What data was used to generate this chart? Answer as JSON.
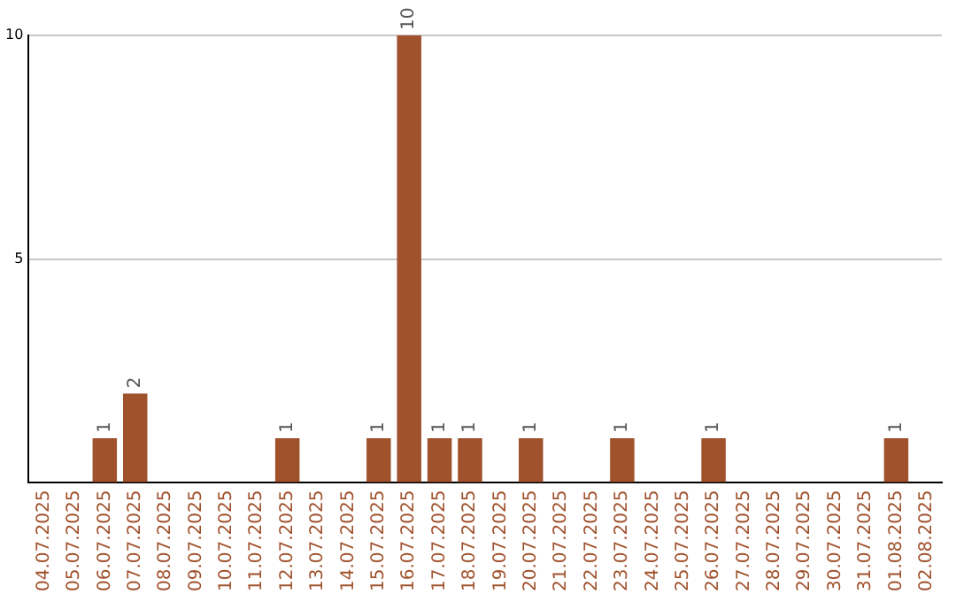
{
  "chart_data": {
    "type": "bar",
    "categories": [
      "04.07.2025",
      "05.07.2025",
      "06.07.2025",
      "07.07.2025",
      "08.07.2025",
      "09.07.2025",
      "10.07.2025",
      "11.07.2025",
      "12.07.2025",
      "13.07.2025",
      "14.07.2025",
      "15.07.2025",
      "16.07.2025",
      "17.07.2025",
      "18.07.2025",
      "19.07.2025",
      "20.07.2025",
      "21.07.2025",
      "22.07.2025",
      "23.07.2025",
      "24.07.2025",
      "25.07.2025",
      "26.07.2025",
      "27.07.2025",
      "28.07.2025",
      "29.07.2025",
      "30.07.2025",
      "31.07.2025",
      "01.08.2025",
      "02.08.2025"
    ],
    "values": [
      0,
      0,
      1,
      2,
      0,
      0,
      0,
      0,
      1,
      0,
      0,
      1,
      10,
      1,
      1,
      0,
      1,
      0,
      0,
      1,
      0,
      0,
      1,
      0,
      0,
      0,
      0,
      0,
      1,
      0
    ],
    "value_labels": [
      null,
      null,
      "1",
      "2",
      null,
      null,
      null,
      null,
      "1",
      null,
      null,
      "1",
      "10",
      "1",
      "1",
      null,
      "1",
      null,
      null,
      "1",
      null,
      null,
      "1",
      null,
      null,
      null,
      null,
      null,
      "1",
      null
    ],
    "color": "#a0522d",
    "ylim": [
      0,
      10
    ],
    "yticks": [
      {
        "value": 0,
        "label": null
      },
      5,
      10
    ],
    "grid": "y",
    "legend": false
  }
}
